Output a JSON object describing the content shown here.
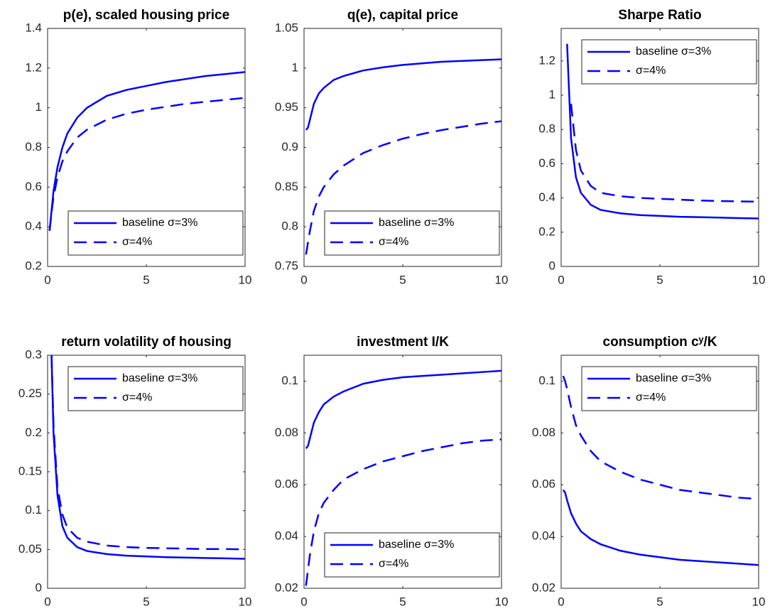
{
  "chart_data": [
    {
      "type": "line",
      "title": "p(e), scaled housing price",
      "legend": "lower right",
      "x": [
        0.1,
        0.2,
        0.3,
        0.5,
        0.75,
        1,
        1.5,
        2,
        3,
        4,
        5,
        6,
        7,
        8,
        9,
        10
      ],
      "series": [
        {
          "name": "baseline σ=3%",
          "color": "#0000ff",
          "linestyle": "solid",
          "values": [
            0.38,
            0.48,
            0.58,
            0.7,
            0.8,
            0.87,
            0.95,
            1.0,
            1.06,
            1.09,
            1.11,
            1.13,
            1.145,
            1.16,
            1.17,
            1.18
          ]
        },
        {
          "name": "σ=4%",
          "color": "#0000ff",
          "linestyle": "dashed",
          "values": [
            0.38,
            0.47,
            0.55,
            0.65,
            0.73,
            0.78,
            0.85,
            0.89,
            0.94,
            0.97,
            0.99,
            1.005,
            1.02,
            1.03,
            1.04,
            1.05
          ]
        }
      ],
      "xlim": [
        0,
        10
      ],
      "xticks": [
        0,
        5,
        10
      ],
      "ylim": [
        0.2,
        1.4
      ],
      "yticks": [
        0.2,
        0.4,
        0.6,
        0.8,
        1,
        1.2,
        1.4
      ]
    },
    {
      "type": "line",
      "title": "q(e), capital price",
      "legend": "lower right",
      "x": [
        0.1,
        0.2,
        0.3,
        0.5,
        0.75,
        1,
        1.5,
        2,
        3,
        4,
        5,
        6,
        7,
        8,
        9,
        10
      ],
      "series": [
        {
          "name": "baseline σ=3%",
          "color": "#0000ff",
          "linestyle": "solid",
          "values": [
            0.922,
            0.925,
            0.935,
            0.955,
            0.968,
            0.975,
            0.985,
            0.99,
            0.997,
            1.001,
            1.004,
            1.006,
            1.008,
            1.009,
            1.01,
            1.011
          ]
        },
        {
          "name": "σ=4%",
          "color": "#0000ff",
          "linestyle": "dashed",
          "values": [
            0.765,
            0.78,
            0.795,
            0.82,
            0.838,
            0.85,
            0.866,
            0.877,
            0.893,
            0.903,
            0.911,
            0.917,
            0.922,
            0.926,
            0.93,
            0.933
          ]
        }
      ],
      "xlim": [
        0,
        10
      ],
      "xticks": [
        0,
        5,
        10
      ],
      "ylim": [
        0.75,
        1.05
      ],
      "yticks": [
        0.75,
        0.8,
        0.85,
        0.9,
        0.95,
        1,
        1.05
      ]
    },
    {
      "type": "line",
      "title": "Sharpe Ratio",
      "legend": "upper right",
      "x": [
        0.1,
        0.2,
        0.3,
        0.5,
        0.75,
        1,
        1.5,
        2,
        3,
        4,
        5,
        6,
        7,
        8,
        9,
        10
      ],
      "series": [
        {
          "name": "baseline σ=3%",
          "color": "#0000ff",
          "linestyle": "solid",
          "values": [
            null,
            null,
            1.3,
            0.75,
            0.52,
            0.43,
            0.36,
            0.33,
            0.31,
            0.3,
            0.295,
            0.29,
            0.288,
            0.285,
            0.282,
            0.28
          ]
        },
        {
          "name": "σ=4%",
          "color": "#0000ff",
          "linestyle": "dashed",
          "values": [
            null,
            null,
            null,
            0.95,
            0.68,
            0.56,
            0.47,
            0.43,
            0.41,
            0.4,
            0.395,
            0.39,
            0.385,
            0.382,
            0.38,
            0.378
          ]
        }
      ],
      "xlim": [
        0,
        10
      ],
      "xticks": [
        0,
        5,
        10
      ],
      "ylim": [
        0,
        1.39
      ],
      "yticks": [
        0,
        0.2,
        0.4,
        0.6,
        0.8,
        1,
        1.2
      ]
    },
    {
      "type": "line",
      "title": "return volatility of housing",
      "legend": "upper right",
      "x": [
        0.1,
        0.2,
        0.3,
        0.5,
        0.75,
        1,
        1.5,
        2,
        3,
        4,
        5,
        6,
        7,
        8,
        9,
        10
      ],
      "series": [
        {
          "name": "baseline σ=3%",
          "color": "#0000ff",
          "linestyle": "solid",
          "values": [
            null,
            0.3,
            0.2,
            0.12,
            0.08,
            0.065,
            0.053,
            0.048,
            0.044,
            0.042,
            0.041,
            0.04,
            0.0395,
            0.039,
            0.0385,
            0.038
          ]
        },
        {
          "name": "σ=4%",
          "color": "#0000ff",
          "linestyle": "dashed",
          "values": [
            null,
            0.3,
            0.21,
            0.13,
            0.095,
            0.078,
            0.065,
            0.06,
            0.055,
            0.053,
            0.052,
            0.0515,
            0.051,
            0.0505,
            0.0505,
            0.05
          ]
        }
      ],
      "xlim": [
        0,
        10
      ],
      "xticks": [
        0,
        5,
        10
      ],
      "ylim": [
        0,
        0.3
      ],
      "yticks": [
        0,
        0.05,
        0.1,
        0.15,
        0.2,
        0.25,
        0.3
      ]
    },
    {
      "type": "line",
      "title": "investment I/K",
      "legend": "lower right",
      "x": [
        0.1,
        0.2,
        0.3,
        0.5,
        0.75,
        1,
        1.5,
        2,
        3,
        4,
        5,
        6,
        7,
        8,
        9,
        10
      ],
      "series": [
        {
          "name": "baseline σ=3%",
          "color": "#0000ff",
          "linestyle": "solid",
          "values": [
            0.074,
            0.075,
            0.078,
            0.084,
            0.088,
            0.091,
            0.094,
            0.096,
            0.099,
            0.1005,
            0.1015,
            0.102,
            0.1025,
            0.103,
            0.1035,
            0.104
          ]
        },
        {
          "name": "σ=4%",
          "color": "#0000ff",
          "linestyle": "dashed",
          "values": [
            0.021,
            0.027,
            0.033,
            0.042,
            0.049,
            0.053,
            0.058,
            0.062,
            0.066,
            0.069,
            0.071,
            0.073,
            0.0745,
            0.076,
            0.077,
            0.0775
          ]
        }
      ],
      "xlim": [
        0,
        10
      ],
      "xticks": [
        0,
        5,
        10
      ],
      "ylim": [
        0.02,
        0.11
      ],
      "yticks": [
        0.02,
        0.04,
        0.06,
        0.08,
        0.1
      ]
    },
    {
      "type": "line",
      "title": "consumption cʸ/K",
      "legend": "upper right",
      "x": [
        0.1,
        0.2,
        0.3,
        0.5,
        0.75,
        1,
        1.5,
        2,
        3,
        4,
        5,
        6,
        7,
        8,
        9,
        10
      ],
      "series": [
        {
          "name": "baseline σ=3%",
          "color": "#0000ff",
          "linestyle": "solid",
          "values": [
            0.058,
            0.057,
            0.054,
            0.049,
            0.045,
            0.042,
            0.039,
            0.037,
            0.0345,
            0.033,
            0.032,
            0.031,
            0.0305,
            0.03,
            0.0295,
            0.029
          ]
        },
        {
          "name": "σ=4%",
          "color": "#0000ff",
          "linestyle": "dashed",
          "values": [
            0.102,
            0.1,
            0.097,
            0.09,
            0.083,
            0.079,
            0.073,
            0.069,
            0.065,
            0.062,
            0.06,
            0.058,
            0.057,
            0.056,
            0.055,
            0.0545
          ]
        }
      ],
      "xlim": [
        0,
        10
      ],
      "xticks": [
        0,
        5,
        10
      ],
      "ylim": [
        0.02,
        0.11
      ],
      "yticks": [
        0.02,
        0.04,
        0.06,
        0.08,
        0.1
      ]
    }
  ]
}
